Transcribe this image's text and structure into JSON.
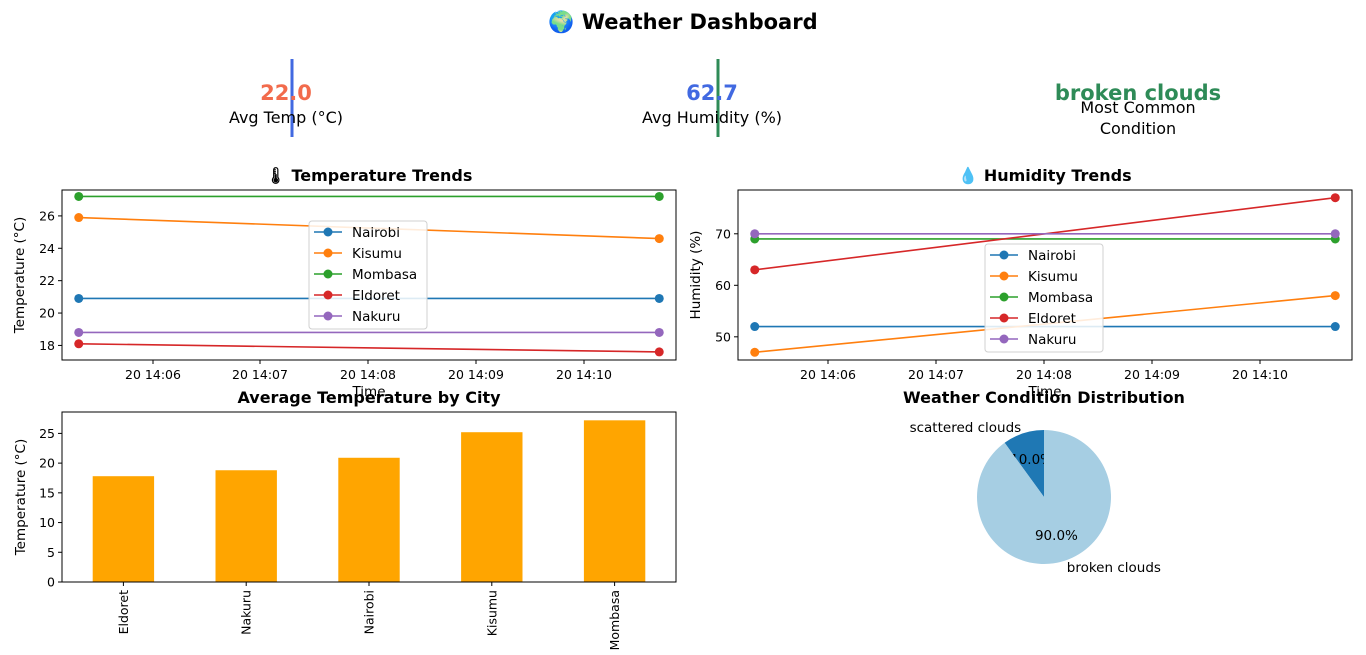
{
  "dashboard": {
    "title": "🌍 Weather Dashboard"
  },
  "kpis": [
    {
      "value": "22.0",
      "label": "Avg Temp (°C)",
      "color": "#f26b4c",
      "line_color": "#4169e1"
    },
    {
      "value": "62.7",
      "label": "Avg Humidity (%)",
      "color": "#4169e1",
      "line_color": "#2e8b57"
    },
    {
      "value": "broken clouds",
      "label_lines": [
        "Most Common",
        "Condition"
      ],
      "color": "#2e8b57"
    }
  ],
  "colors": {
    "Nairobi": "#1f77b4",
    "Kisumu": "#ff7f0e",
    "Mombasa": "#2ca02c",
    "Eldoret": "#d62728",
    "Nakuru": "#9467bd",
    "bar": "#ffa500",
    "pie_broken": "#a6cee3",
    "pie_scattered": "#1f78b4"
  },
  "chart_data": [
    {
      "type": "line",
      "title": "🌡 Temperature Trends",
      "xlabel": "Time",
      "ylabel": "Temperature (°C)",
      "x_ticks": [
        "20 14:06",
        "20 14:07",
        "20 14:08",
        "20 14:09",
        "20 14:10"
      ],
      "x_range": [
        "14:05:15",
        "14:10:45"
      ],
      "ylim": [
        17.1,
        27.6
      ],
      "y_ticks": [
        "18",
        "20",
        "22",
        "24",
        "26"
      ],
      "series": [
        {
          "name": "Nairobi",
          "points": [
            [
              "14:05:24",
              20.9
            ],
            [
              "14:10:36",
              20.9
            ]
          ]
        },
        {
          "name": "Kisumu",
          "points": [
            [
              "14:05:24",
              25.9
            ],
            [
              "14:10:36",
              24.6
            ]
          ]
        },
        {
          "name": "Mombasa",
          "points": [
            [
              "14:05:24",
              27.2
            ],
            [
              "14:10:36",
              27.2
            ]
          ]
        },
        {
          "name": "Eldoret",
          "points": [
            [
              "14:05:24",
              18.1
            ],
            [
              "14:10:36",
              17.6
            ]
          ]
        },
        {
          "name": "Nakuru",
          "points": [
            [
              "14:05:24",
              18.8
            ],
            [
              "14:10:36",
              18.8
            ]
          ]
        }
      ],
      "legend_location": "center"
    },
    {
      "type": "line",
      "title": "💧 Humidity Trends",
      "xlabel": "Time",
      "ylabel": "Humidity (%)",
      "x_ticks": [
        "20 14:06",
        "20 14:07",
        "20 14:08",
        "20 14:09",
        "20 14:10"
      ],
      "x_range": [
        "14:05:15",
        "14:10:45"
      ],
      "ylim": [
        45.5,
        78.5
      ],
      "y_ticks": [
        "50",
        "60",
        "70"
      ],
      "series": [
        {
          "name": "Nairobi",
          "points": [
            [
              "14:05:24",
              52
            ],
            [
              "14:10:36",
              52
            ]
          ]
        },
        {
          "name": "Kisumu",
          "points": [
            [
              "14:05:24",
              47
            ],
            [
              "14:10:36",
              58
            ]
          ]
        },
        {
          "name": "Mombasa",
          "points": [
            [
              "14:05:24",
              69
            ],
            [
              "14:10:36",
              69
            ]
          ]
        },
        {
          "name": "Eldoret",
          "points": [
            [
              "14:05:24",
              63
            ],
            [
              "14:10:36",
              77
            ]
          ]
        },
        {
          "name": "Nakuru",
          "points": [
            [
              "14:05:24",
              70
            ],
            [
              "14:10:36",
              70
            ]
          ]
        }
      ],
      "legend_location": "lower center"
    },
    {
      "type": "bar",
      "title": "Average Temperature by City",
      "ylabel": "Temperature (°C)",
      "categories": [
        "Eldoret",
        "Nakuru",
        "Nairobi",
        "Kisumu",
        "Mombasa"
      ],
      "values": [
        17.8,
        18.8,
        20.9,
        25.2,
        27.2
      ],
      "ylim": [
        0,
        28.6
      ],
      "y_ticks": [
        "0",
        "5",
        "10",
        "15",
        "20",
        "25"
      ]
    },
    {
      "type": "pie",
      "title": "Weather Condition Distribution",
      "slices": [
        {
          "label": "scattered clouds",
          "value": 10.0,
          "pct_label": "10.0%"
        },
        {
          "label": "broken clouds",
          "value": 90.0,
          "pct_label": "90.0%"
        }
      ]
    }
  ]
}
